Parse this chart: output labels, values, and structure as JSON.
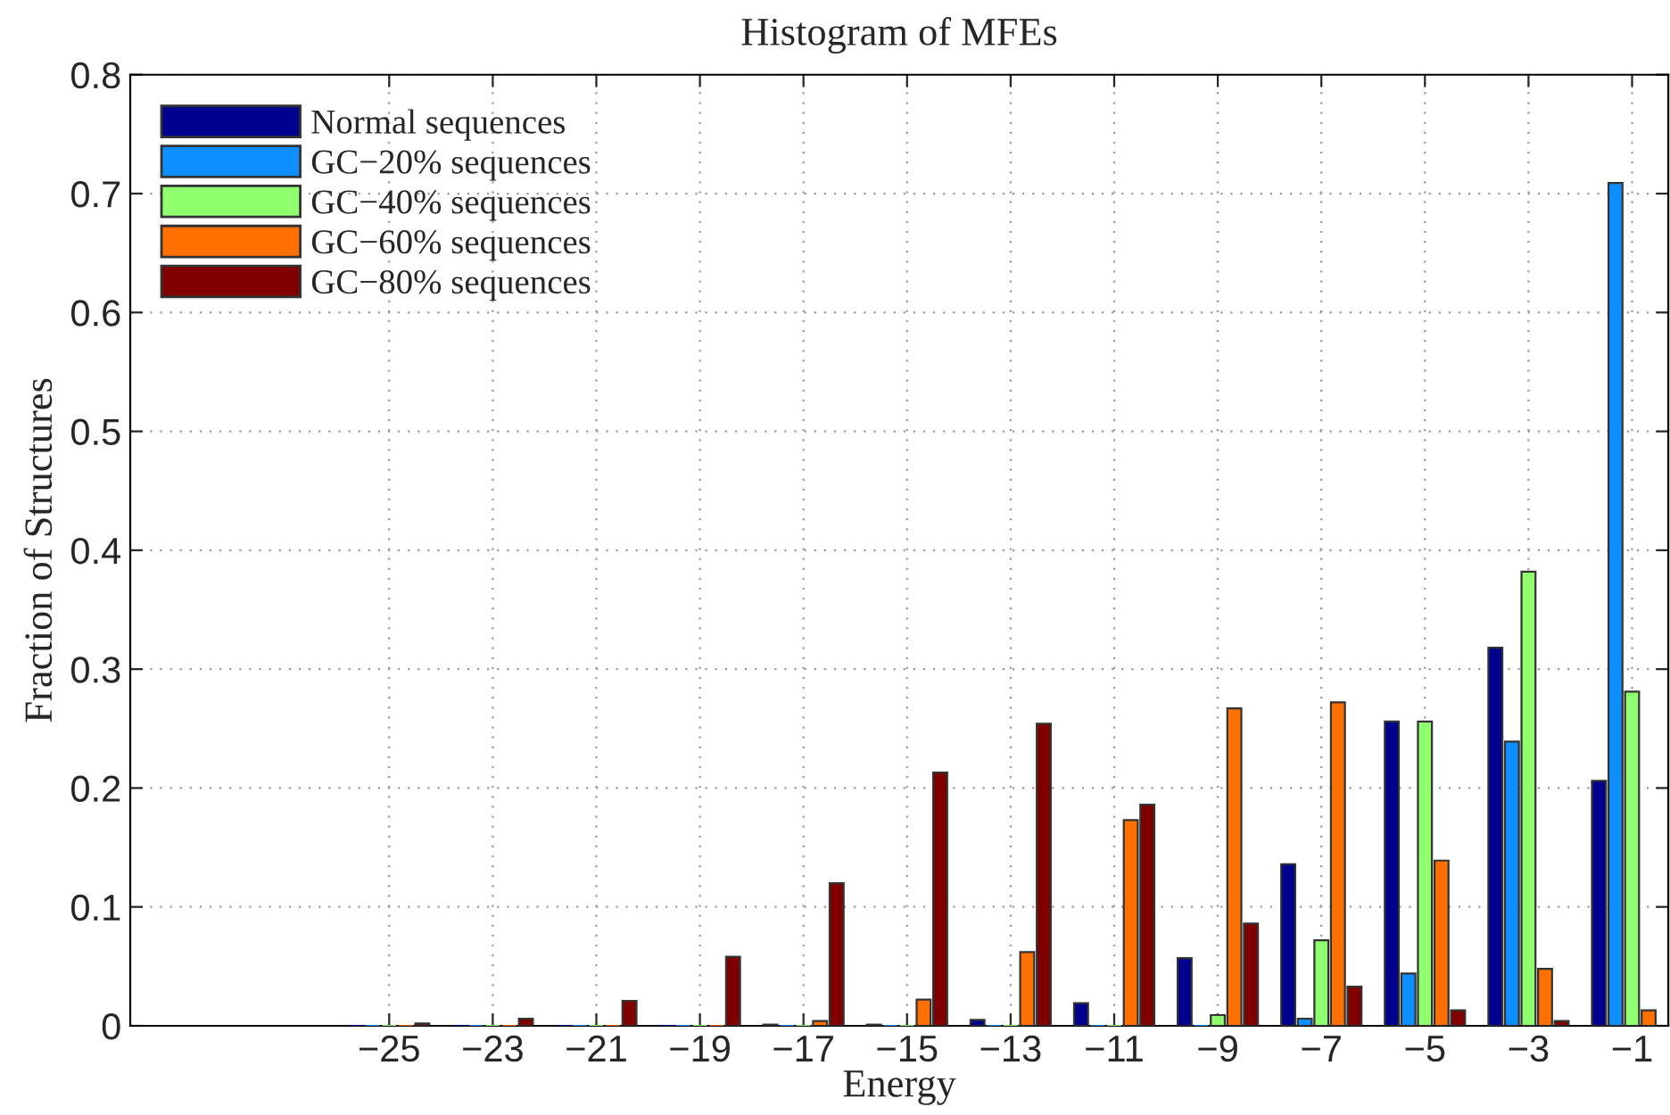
{
  "chart_data": {
    "type": "bar",
    "title": "Histogram of MFEs",
    "xlabel": "Energy",
    "ylabel": "Fraction of Structures",
    "x": [
      -25,
      -23,
      -21,
      -19,
      -17,
      -15,
      -13,
      -11,
      -9,
      -7,
      -5,
      -3,
      -1
    ],
    "series": [
      {
        "name": "Normal sequences",
        "color": "#00008f",
        "values": [
          0,
          0,
          0,
          0,
          0.001,
          0.001,
          0.005,
          0.019,
          0.057,
          0.136,
          0.256,
          0.318,
          0.206
        ]
      },
      {
        "name": "GC−20% sequences",
        "color": "#0f8fff",
        "values": [
          0,
          0,
          0,
          0,
          0,
          0,
          0,
          0,
          0,
          0.006,
          0.044,
          0.239,
          0.709
        ]
      },
      {
        "name": "GC−40% sequences",
        "color": "#8fff70",
        "values": [
          0,
          0,
          0,
          0,
          0,
          0,
          0,
          0,
          0.009,
          0.072,
          0.256,
          0.382,
          0.281
        ]
      },
      {
        "name": "GC−60% sequences",
        "color": "#ff7000",
        "values": [
          0,
          0,
          0,
          0,
          0.004,
          0.022,
          0.062,
          0.173,
          0.267,
          0.272,
          0.139,
          0.048,
          0.013
        ]
      },
      {
        "name": "GC−80% sequences",
        "color": "#800000",
        "values": [
          0.002,
          0.006,
          0.021,
          0.058,
          0.12,
          0.213,
          0.254,
          0.186,
          0.086,
          0.033,
          0.013,
          0.004,
          null
        ]
      }
    ],
    "xlim": [
      -30,
      -0.3
    ],
    "xticks": [
      -25,
      -23,
      -21,
      -19,
      -17,
      -15,
      -13,
      -11,
      -9,
      -7,
      -5,
      -3,
      -1
    ],
    "ylim": [
      0,
      0.8
    ],
    "yticks": [
      0,
      0.1,
      0.2,
      0.3,
      0.4,
      0.5,
      0.6,
      0.7,
      0.8
    ],
    "grid": true,
    "legend": "top left"
  }
}
